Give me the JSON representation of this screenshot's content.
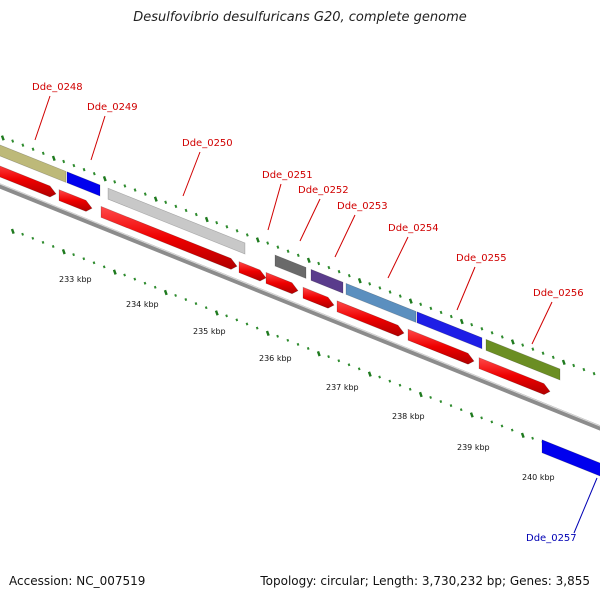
{
  "title": "Desulfovibrio desulfuricans G20, complete genome",
  "footer": {
    "accession": "Accession: NC_007519",
    "summary": "Topology: circular; Length: 3,730,232 bp; Genes: 3,855"
  },
  "colors": {
    "background": "#ffffff",
    "backbone": "#8c8c8c",
    "tick": "#2e8b2e",
    "tick_minor": "#1e7a1e",
    "label_red": "#d00000",
    "label_blue": "#0000b4",
    "cds": "#ee0000"
  },
  "axis": {
    "kbp_labels": [
      "233 kbp",
      "234 kbp",
      "235 kbp",
      "236 kbp",
      "237 kbp",
      "238 kbp",
      "239 kbp",
      "240 kbp"
    ]
  },
  "genes": [
    {
      "id": "Dde_0248",
      "color": "#bdb979",
      "label_color": "#d00000"
    },
    {
      "id": "Dde_0249",
      "color": "#0000ee",
      "label_color": "#d00000"
    },
    {
      "id": "Dde_0250",
      "color": "#c8c8c8",
      "label_color": "#d00000"
    },
    {
      "id": "Dde_0251",
      "color": "#6a6a6a",
      "label_color": "#d00000"
    },
    {
      "id": "Dde_0252",
      "color": "#5a3c8c",
      "label_color": "#d00000"
    },
    {
      "id": "Dde_0253",
      "color": "#5b8fbf",
      "label_color": "#d00000"
    },
    {
      "id": "Dde_0254",
      "color": "#1e1ee6",
      "label_color": "#d00000"
    },
    {
      "id": "Dde_0255",
      "color": "#6b8e23",
      "label_color": "#d00000"
    },
    {
      "id": "Dde_0256",
      "color": "#6b8e23",
      "label_color": "#d00000"
    },
    {
      "id": "Dde_0257",
      "color": "#0000ee",
      "label_color": "#0000b4"
    }
  ]
}
